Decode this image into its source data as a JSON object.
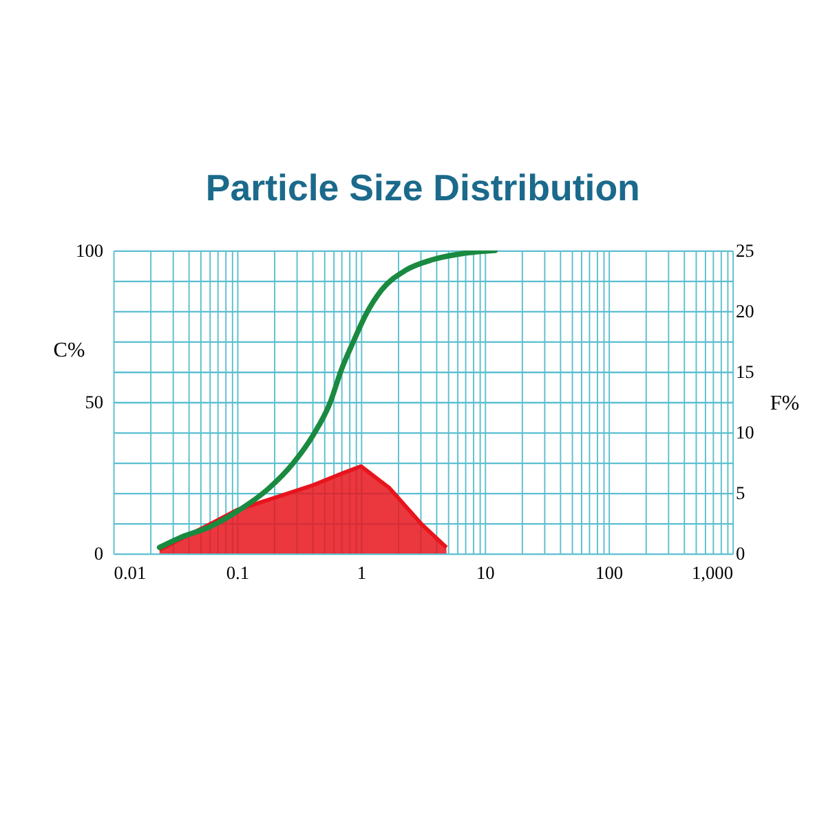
{
  "chart_data": {
    "type": "line",
    "title": "Particle Size Distribution",
    "ylabel": "C%",
    "y2label": "F%",
    "log": "x",
    "grid": true,
    "marker": "none",
    "line_style": "solid",
    "xlim": [
      0.01,
      1000
    ],
    "xticks": [
      0.01,
      {
        "value": 0.02,
        "label": null
      },
      {
        "value": 0.03,
        "label": null
      },
      {
        "value": 0.04,
        "label": null
      },
      {
        "value": 0.05,
        "label": null
      },
      {
        "value": 0.06,
        "label": null
      },
      {
        "value": 0.07,
        "label": null
      },
      {
        "value": 0.08,
        "label": null
      },
      {
        "value": 0.09,
        "label": null
      },
      0.1,
      {
        "value": 0.2,
        "label": null
      },
      {
        "value": 0.3,
        "label": null
      },
      {
        "value": 0.4,
        "label": null
      },
      {
        "value": 0.5,
        "label": null
      },
      {
        "value": 0.6,
        "label": null
      },
      {
        "value": 0.7,
        "label": null
      },
      {
        "value": 0.8,
        "label": null
      },
      {
        "value": 0.9,
        "label": null
      },
      1,
      {
        "value": 2,
        "label": null
      },
      {
        "value": 3,
        "label": null
      },
      {
        "value": 4,
        "label": null
      },
      {
        "value": 5,
        "label": null
      },
      {
        "value": 6,
        "label": null
      },
      {
        "value": 7,
        "label": null
      },
      {
        "value": 8,
        "label": null
      },
      {
        "value": 9,
        "label": null
      },
      10,
      {
        "value": 20,
        "label": null
      },
      {
        "value": 30,
        "label": null
      },
      {
        "value": 40,
        "label": null
      },
      {
        "value": 50,
        "label": null
      },
      {
        "value": 60,
        "label": null
      },
      {
        "value": 70,
        "label": null
      },
      {
        "value": 80,
        "label": null
      },
      {
        "value": 90,
        "label": null
      },
      100,
      {
        "value": 200,
        "label": null
      },
      {
        "value": 300,
        "label": null
      },
      {
        "value": 400,
        "label": null
      },
      {
        "value": 500,
        "label": null
      },
      {
        "value": 600,
        "label": null
      },
      {
        "value": 700,
        "label": null
      },
      {
        "value": 800,
        "label": null
      },
      {
        "value": 900,
        "label": null
      },
      {
        "value": 1000,
        "label": "1,000"
      }
    ],
    "ylim": [
      0,
      100
    ],
    "yticks": [
      0,
      {
        "value": 10,
        "label": null
      },
      {
        "value": 20,
        "label": null
      },
      {
        "value": 30,
        "label": null
      },
      {
        "value": 40,
        "label": null
      },
      50,
      {
        "value": 60,
        "label": null
      },
      {
        "value": 70,
        "label": null
      },
      {
        "value": 80,
        "label": null
      },
      {
        "value": 90,
        "label": null
      },
      100
    ],
    "y2lim": [
      0,
      25
    ],
    "y2ticks": [
      0,
      5,
      10,
      15,
      20,
      25
    ],
    "series": [
      {
        "type": "area",
        "axis": "y2",
        "color": "#e8141c",
        "x": [
          0.0236,
          0.035,
          0.06,
          0.1,
          0.2,
          0.4,
          0.7,
          1.0,
          1.7,
          3.1,
          4.9
        ],
        "values": [
          0.3,
          1.2,
          2.4,
          3.6,
          4.6,
          5.6,
          6.6,
          7.2,
          5.4,
          2.4,
          0.5
        ]
      },
      {
        "color": "#1a8a40",
        "x": [
          0.0236,
          0.0355,
          0.06,
          0.1,
          0.18,
          0.286,
          0.41,
          0.56,
          0.7,
          0.87,
          1.1,
          1.47,
          2.3,
          3.8,
          6.6,
          12.1
        ],
        "values": [
          2,
          5.4,
          8.8,
          13.9,
          21.5,
          30,
          39,
          49.5,
          61,
          70,
          79,
          87,
          93.5,
          97,
          99,
          100
        ]
      }
    ]
  }
}
